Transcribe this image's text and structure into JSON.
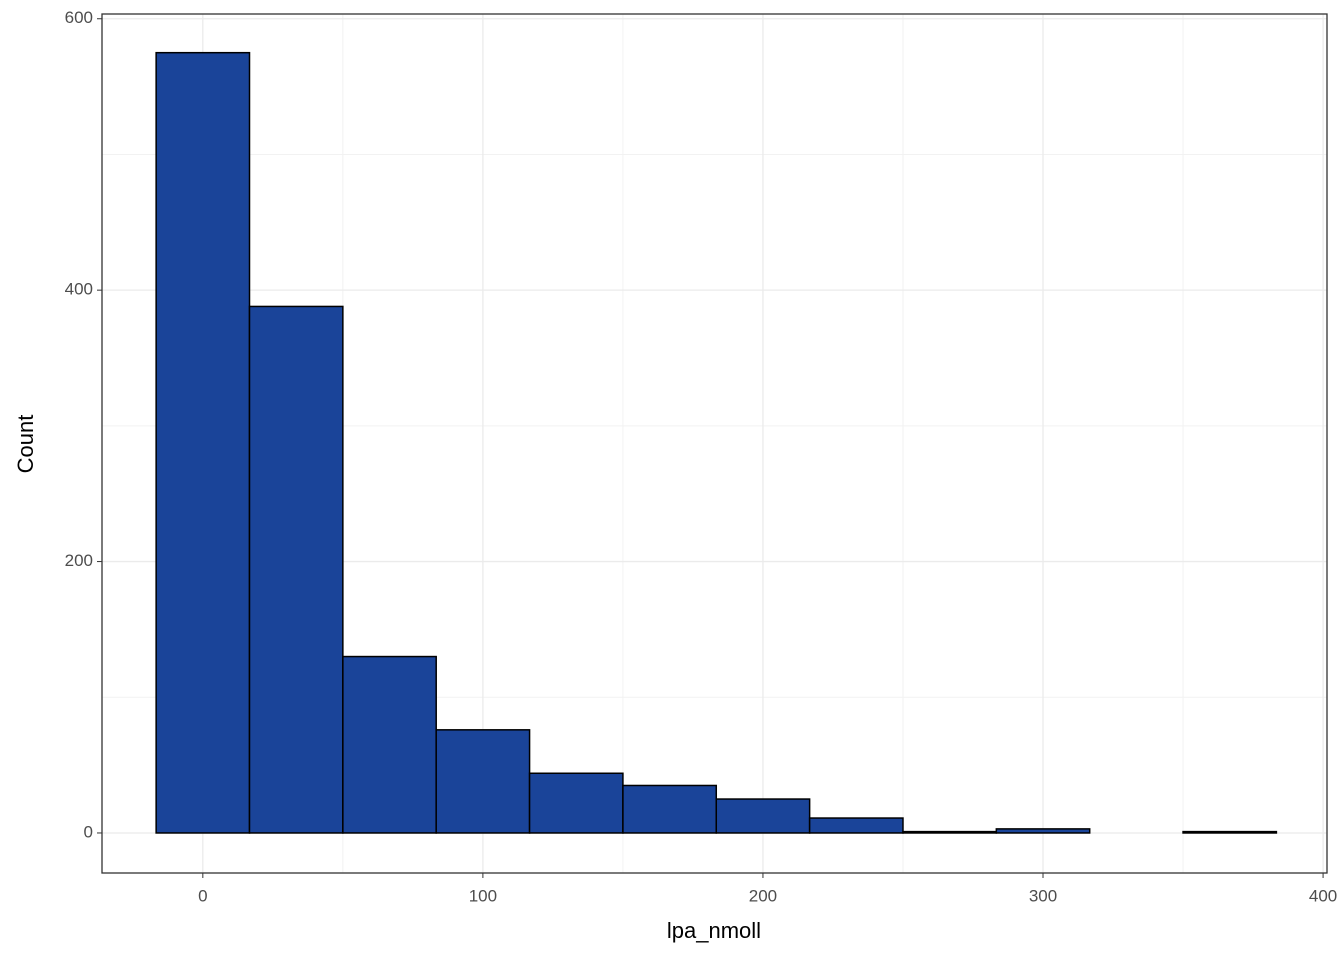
{
  "chart_data": {
    "type": "histogram",
    "x_label": "lpa_nmoll",
    "y_label": "Count",
    "bins": [
      -16.67,
      16.67,
      50,
      83.33,
      116.67,
      150,
      183.33,
      216.67,
      250,
      283.33,
      316.67,
      350,
      383.33
    ],
    "values": [
      575,
      388,
      130,
      76,
      44,
      35,
      25,
      11,
      1,
      3,
      0,
      1
    ],
    "color": "#1a4499",
    "edge_color": "#000000",
    "xlim": [
      -36,
      401.4
    ],
    "ylim": [
      -29.5,
      603.5
    ],
    "xticks": [
      0,
      100,
      200,
      300,
      400
    ],
    "yticks": [
      0,
      200,
      400,
      600
    ],
    "grid": true
  }
}
